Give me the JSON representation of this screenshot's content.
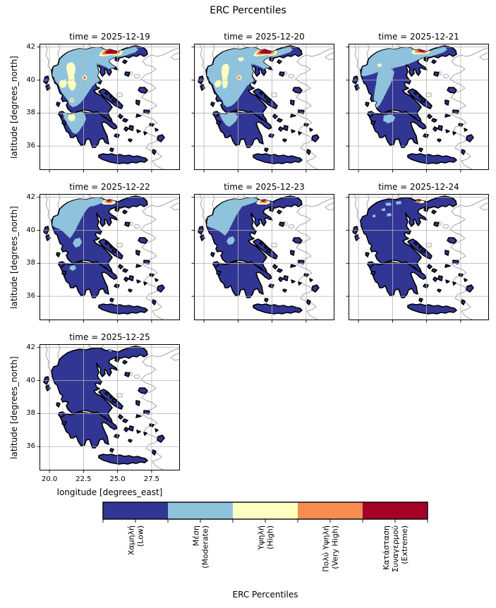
{
  "figure": {
    "suptitle": "ERC Percentiles",
    "background": "#ffffff"
  },
  "axes": {
    "xlabel": "longitude [degrees_east]",
    "ylabel": "latitude [degrees_north]",
    "xtick_labels": [
      "20.0",
      "22.5",
      "25.0",
      "27.5"
    ],
    "ytick_labels": [
      "42",
      "40",
      "38",
      "36"
    ]
  },
  "chart_data": {
    "type": "map-grid (faceted choropleth of Greece, discrete fire-danger classes)",
    "suptitle": "ERC Percentiles",
    "xlabel": "longitude [degrees_east]",
    "ylabel": "latitude [degrees_north]",
    "xticks": [
      20.0,
      22.5,
      25.0,
      27.5
    ],
    "yticks": [
      42,
      40,
      38,
      36
    ],
    "xlim": [
      19.27,
      29.58
    ],
    "ylim": [
      34.55,
      42.2
    ],
    "grid": true,
    "layout": "3 columns x 3 rows, 7 facets",
    "colorbar": {
      "label": "ERC Percentiles",
      "orientation": "horizontal",
      "classes": [
        {
          "lines": [
            "Χαμηλή",
            "(Low)"
          ],
          "key": "low",
          "color": "#313695"
        },
        {
          "lines": [
            "Μέση",
            "(Moderate)"
          ],
          "key": "moderate",
          "color": "#8fc3dd"
        },
        {
          "lines": [
            "Υψηλή",
            "(High)"
          ],
          "key": "high",
          "color": "#ffffbf"
        },
        {
          "lines": [
            "Πολύ Υψηλή",
            "(Very High)"
          ],
          "key": "very_high",
          "color": "#f88d52"
        },
        {
          "lines": [
            "Κατάσταση",
            "Συναγερμού",
            "(Extreme)"
          ],
          "key": "extreme",
          "color": "#a50026"
        }
      ]
    },
    "panels": [
      {
        "title": "time = 2025-12-19",
        "overlays": [
          "mod_nw_large",
          "mod_pelop_w",
          "high_stripe",
          "high_epirus",
          "high_pelop",
          "dot_halo_a",
          "dot_orange_a",
          "dot_red_a",
          "dot_halo_b",
          "dot_orange_b",
          "hot_cream_a",
          "hot_orange_a",
          "hot_red_a"
        ]
      },
      {
        "title": "time = 2025-12-20",
        "overlays": [
          "mod_nw_large",
          "mod_pelop_w2",
          "high_stripe2",
          "high_epirus2",
          "high_dot_a2",
          "dot_halo_a",
          "dot_orange_a",
          "hot_cream_a",
          "hot_orange_a",
          "hot_red_a"
        ]
      },
      {
        "title": "time = 2025-12-21",
        "overlays": [
          "mod_north_band",
          "mod_central_arm",
          "mod_pelop_n",
          "high_dot_nw",
          "hot_cream_b",
          "hot_orange_b",
          "hot_red_b"
        ]
      },
      {
        "title": "time = 2025-12-22",
        "overlays": [
          "mod_nw_med",
          "mod_patch_c",
          "mod_pelop_dot",
          "hot_cream_c",
          "hot_orange_c",
          "hot_red_c"
        ]
      },
      {
        "title": "time = 2025-12-23",
        "overlays": [
          "mod_nw_med2",
          "mod_patch_c2",
          "hot_cream_c",
          "hot_orange_c",
          "hot_red_c"
        ]
      },
      {
        "title": "time = 2025-12-24",
        "overlays": [
          "mod_trace_a",
          "mod_trace_b",
          "mod_trace_c",
          "mod_trace_d",
          "mod_trace_e",
          "hot_cream_d",
          "hot_orange_d",
          "hot_red_d"
        ]
      },
      {
        "title": "time = 2025-12-25",
        "overlays": [
          "mod_dot_ne"
        ]
      }
    ]
  }
}
